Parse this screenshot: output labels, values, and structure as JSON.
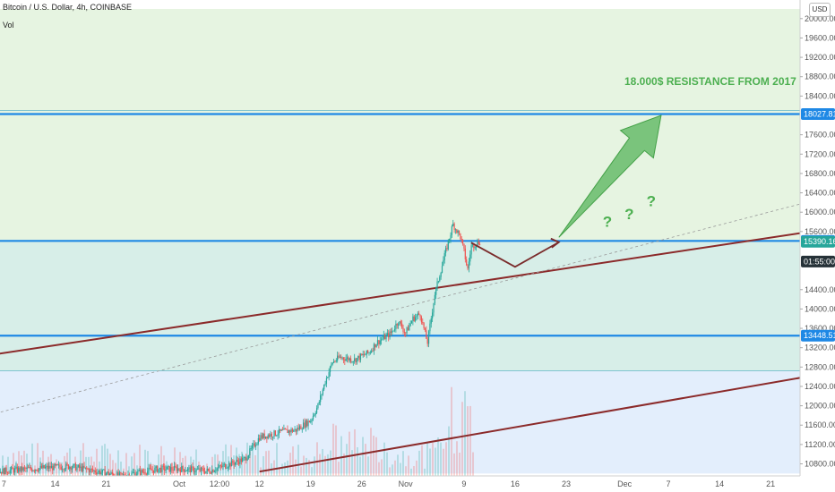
{
  "header": {
    "title": "Bitcoin / U.S. Dollar, 4h, COINBASE",
    "vol_label": "Vol",
    "currency": "USD"
  },
  "colors": {
    "up": "#26a69a",
    "down": "#ef5350",
    "zone_green": "#e6f4e1",
    "zone_teal": "#d7eee8",
    "zone_blue": "#e3eefc",
    "hline": "#1e88e5",
    "channel": "#8b2a2a",
    "arrow_fill": "#66bb6a",
    "path_arrow": "#7a2b2b",
    "tag_blue": "#1e88e5",
    "tag_green": "#26a69a",
    "tag_dark": "#263238"
  },
  "chart_data": {
    "type": "candlestick",
    "title": "Bitcoin / U.S. Dollar, 4h, COINBASE",
    "price_axis": {
      "ylim": [
        10600,
        20200
      ],
      "ticks": [
        20000,
        19600,
        19200,
        18800,
        18400,
        17600,
        17200,
        16800,
        16400,
        16000,
        15600,
        14400,
        14000,
        13600,
        13200,
        12800,
        12400,
        12000,
        11600,
        11200,
        10800
      ],
      "tick_labels": [
        "20000.00",
        "19600.00",
        "19200.00",
        "18800.00",
        "18400.00",
        "17600.00",
        "17200.00",
        "16800.00",
        "16400.00",
        "16000.00",
        "15600.00",
        "14400.00",
        "14000.00",
        "13600.00",
        "13200.00",
        "12800.00",
        "12400.00",
        "12000.00",
        "11600.00",
        "11200.00",
        "10800.00"
      ]
    },
    "time_axis": {
      "labels": [
        "7",
        "14",
        "21",
        "Oct",
        "12:00",
        "12",
        "19",
        "26",
        "Nov",
        "9",
        "16",
        "23",
        "Dec",
        "7",
        "14",
        "21"
      ],
      "positions_day": [
        -24,
        -17,
        -10,
        0,
        1.5,
        11,
        18,
        25,
        31,
        39,
        46,
        53,
        61,
        67,
        74,
        81
      ]
    },
    "price_tags": [
      {
        "value": 18027.81,
        "label": "18027.81",
        "kind": "blue"
      },
      {
        "value": 15406.25,
        "label": "15406.25",
        "kind": "blue"
      },
      {
        "value": 15390.16,
        "label": "15390.16",
        "kind": "green"
      },
      {
        "value": 14980,
        "label": "01:55:00",
        "kind": "dark"
      },
      {
        "value": 13448.51,
        "label": "13448.51",
        "kind": "blue"
      }
    ],
    "horizontal_levels": [
      18027.81,
      15406.25,
      13448.51
    ],
    "zones": [
      {
        "from": 15406.25,
        "to": 20200,
        "color": "green"
      },
      {
        "from": 12720,
        "to": 15406.25,
        "color": "teal"
      },
      {
        "from": 10600,
        "to": 12720,
        "color": "blue"
      }
    ],
    "extra_lines": [
      18100,
      12720
    ],
    "channel_lines": [
      {
        "p1": [
          -28,
          13000
        ],
        "p2": [
          94,
          15770
        ]
      },
      {
        "p1": [
          11,
          10640
        ],
        "p2": [
          92,
          12760
        ]
      }
    ],
    "dotted_trend": {
      "p1": [
        -28,
        11730
      ],
      "p2": [
        95,
        16560
      ]
    },
    "projection_path": [
      [
        40,
        15370
      ],
      [
        46,
        14870
      ],
      [
        52,
        15380
      ]
    ],
    "big_arrow": {
      "from": [
        52,
        15480
      ],
      "to": [
        66,
        18000
      ]
    },
    "annotation": "18.000$ RESISTANCE FROM 2017",
    "question_marks": [
      "?",
      "?",
      "?"
    ],
    "question_positions": [
      [
        58,
        15700
      ],
      [
        61,
        15860
      ],
      [
        64,
        16120
      ]
    ],
    "ohlc_path": [
      [
        -28,
        10600
      ],
      [
        -22,
        10680
      ],
      [
        -15,
        10750
      ],
      [
        -8,
        10550
      ],
      [
        -3,
        10690
      ],
      [
        0,
        10700
      ],
      [
        4,
        10650
      ],
      [
        9,
        10900
      ],
      [
        11,
        11350
      ],
      [
        14,
        11460
      ],
      [
        16,
        11500
      ],
      [
        18,
        11700
      ],
      [
        19,
        12000
      ],
      [
        20,
        12500
      ],
      [
        21,
        12900
      ],
      [
        22,
        13000
      ],
      [
        24,
        12950
      ],
      [
        26,
        13100
      ],
      [
        27,
        13300
      ],
      [
        28,
        13400
      ],
      [
        29,
        13500
      ],
      [
        30,
        13750
      ],
      [
        31,
        13500
      ],
      [
        32,
        13800
      ],
      [
        33,
        13900
      ],
      [
        34,
        13300
      ],
      [
        35,
        14300
      ],
      [
        36,
        14900
      ],
      [
        36.7,
        15300
      ],
      [
        37.5,
        15750
      ],
      [
        38.5,
        15500
      ],
      [
        39,
        15200
      ],
      [
        39.5,
        14800
      ],
      [
        40,
        15300
      ],
      [
        41.2,
        15390
      ]
    ],
    "volume_series_peak": "tall spikes near Nov 4-9"
  }
}
